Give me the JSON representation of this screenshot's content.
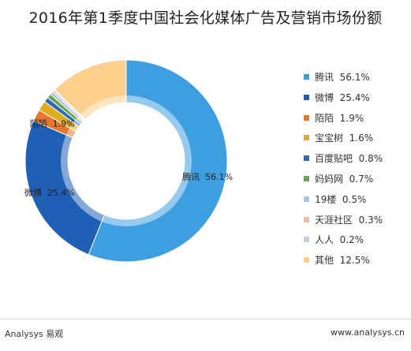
{
  "chart_data": {
    "type": "pie",
    "title": "2016年第1季度中国社会化媒体广告及营销市场份额",
    "series": [
      {
        "name": "腾讯",
        "value": 56.1,
        "display": "56.1%",
        "color": "#3d9ee0"
      },
      {
        "name": "微博",
        "value": 25.4,
        "display": "25.4%",
        "color": "#1f5fb6"
      },
      {
        "name": "陌陌",
        "value": 1.9,
        "display": "1.9%",
        "color": "#e8772e"
      },
      {
        "name": "宝宝树",
        "value": 1.6,
        "display": "1.6%",
        "color": "#e0ac20"
      },
      {
        "name": "百度贴吧",
        "value": 0.8,
        "display": "0.8%",
        "color": "#2a6bbd"
      },
      {
        "name": "妈妈网",
        "value": 0.7,
        "display": "0.7%",
        "color": "#6ea548"
      },
      {
        "name": "19楼",
        "value": 0.5,
        "display": "0.5%",
        "color": "#a9c3ea"
      },
      {
        "name": "天涯社区",
        "value": 0.3,
        "display": "0.3%",
        "color": "#f1bc9d"
      },
      {
        "name": "人人",
        "value": 0.2,
        "display": "0.2%",
        "color": "#c6cedd"
      },
      {
        "name": "其他",
        "value": 12.5,
        "display": "12.5%",
        "color": "#fdd08e"
      }
    ],
    "data_labels": [
      {
        "name": "腾讯",
        "text": "腾讯  56.1%"
      },
      {
        "name": "微博",
        "text": "微博  25.4%"
      },
      {
        "name": "陌陌",
        "text": "陌陌  1.9%"
      }
    ],
    "legend_position": "right"
  },
  "footer": {
    "brand": "Analysys 易观",
    "url": "www.analysys.cn"
  }
}
